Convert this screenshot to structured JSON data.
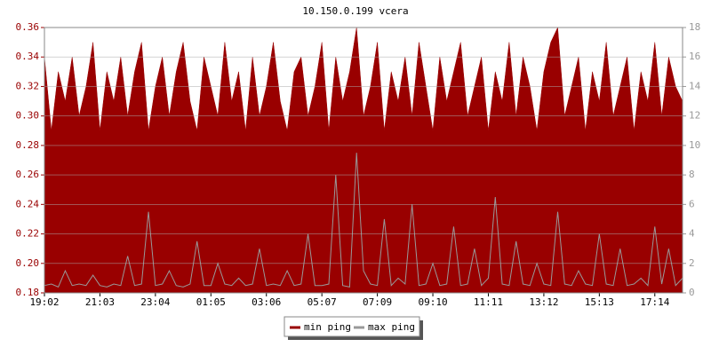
{
  "chart_data": {
    "type": "area",
    "title": "10.150.0.199 vcera",
    "categories": [
      "19:02",
      null,
      null,
      null,
      null,
      null,
      null,
      null,
      "21:03",
      null,
      null,
      null,
      null,
      null,
      null,
      null,
      "23:04",
      null,
      null,
      null,
      null,
      null,
      null,
      null,
      "01:05",
      null,
      null,
      null,
      null,
      null,
      null,
      null,
      "03:06",
      null,
      null,
      null,
      null,
      null,
      null,
      null,
      "05:07",
      null,
      null,
      null,
      null,
      null,
      null,
      null,
      "07:09",
      null,
      null,
      null,
      null,
      null,
      null,
      null,
      "09:10",
      null,
      null,
      null,
      null,
      null,
      null,
      null,
      "11:11",
      null,
      null,
      null,
      null,
      null,
      null,
      null,
      "13:12",
      null,
      null,
      null,
      null,
      null,
      null,
      null,
      "15:13",
      null,
      null,
      null,
      null,
      null,
      null,
      null,
      "17:14",
      null,
      null,
      null,
      null
    ],
    "ylim": [
      0.18,
      0.36
    ],
    "yticks": [
      0.18,
      {
        "value": 0.2,
        "label": "0.20"
      },
      0.22,
      0.24,
      0.26,
      0.28,
      {
        "value": 0.3,
        "label": "0.30"
      },
      0.32,
      0.34,
      0.36
    ],
    "y2lim": [
      0,
      18
    ],
    "y2ticks": [
      0,
      2,
      4,
      6,
      8,
      10,
      12,
      14,
      16,
      18
    ],
    "grid": true,
    "legend": "bottom",
    "series": [
      {
        "name": "min ping",
        "color": "#990000",
        "type": "area",
        "values": [
          0.34,
          0.29,
          0.33,
          0.31,
          0.34,
          0.3,
          0.32,
          0.35,
          0.29,
          0.33,
          0.31,
          0.34,
          0.3,
          0.33,
          0.35,
          0.29,
          0.32,
          0.34,
          0.3,
          0.33,
          0.35,
          0.31,
          0.29,
          0.34,
          0.32,
          0.3,
          0.35,
          0.31,
          0.33,
          0.29,
          0.34,
          0.3,
          0.32,
          0.35,
          0.31,
          0.29,
          0.33,
          0.34,
          0.3,
          0.32,
          0.35,
          0.29,
          0.34,
          0.31,
          0.33,
          0.36,
          0.3,
          0.32,
          0.35,
          0.29,
          0.33,
          0.31,
          0.34,
          0.3,
          0.35,
          0.32,
          0.29,
          0.34,
          0.31,
          0.33,
          0.35,
          0.3,
          0.32,
          0.34,
          0.29,
          0.33,
          0.31,
          0.35,
          0.3,
          0.34,
          0.32,
          0.29,
          0.33,
          0.35,
          0.36,
          0.3,
          0.32,
          0.34,
          0.29,
          0.33,
          0.31,
          0.35,
          0.3,
          0.32,
          0.34,
          0.29,
          0.33,
          0.31,
          0.35,
          0.3,
          0.34,
          0.32,
          0.31
        ]
      },
      {
        "name": "max ping",
        "color": "#999999",
        "type": "line",
        "axis": "y2",
        "values": [
          0.5,
          0.6,
          0.4,
          1.5,
          0.5,
          0.6,
          0.5,
          1.2,
          0.5,
          0.4,
          0.6,
          0.5,
          2.5,
          0.5,
          0.6,
          5.5,
          0.5,
          0.6,
          1.5,
          0.5,
          0.4,
          0.6,
          3.5,
          0.5,
          0.5,
          2.0,
          0.6,
          0.5,
          1.0,
          0.5,
          0.6,
          3.0,
          0.5,
          0.6,
          0.5,
          1.5,
          0.5,
          0.6,
          4.0,
          0.5,
          0.5,
          0.6,
          8.0,
          0.5,
          0.4,
          9.5,
          1.5,
          0.6,
          0.5,
          5.0,
          0.5,
          1.0,
          0.6,
          6.0,
          0.5,
          0.6,
          2.0,
          0.5,
          0.6,
          4.5,
          0.5,
          0.6,
          3.0,
          0.5,
          1.0,
          6.5,
          0.6,
          0.5,
          3.5,
          0.6,
          0.5,
          2.0,
          0.6,
          0.5,
          5.5,
          0.6,
          0.5,
          1.5,
          0.6,
          0.5,
          4.0,
          0.6,
          0.5,
          3.0,
          0.5,
          0.6,
          1.0,
          0.5,
          4.5,
          0.6,
          3.0,
          0.5,
          1.0
        ]
      }
    ]
  }
}
